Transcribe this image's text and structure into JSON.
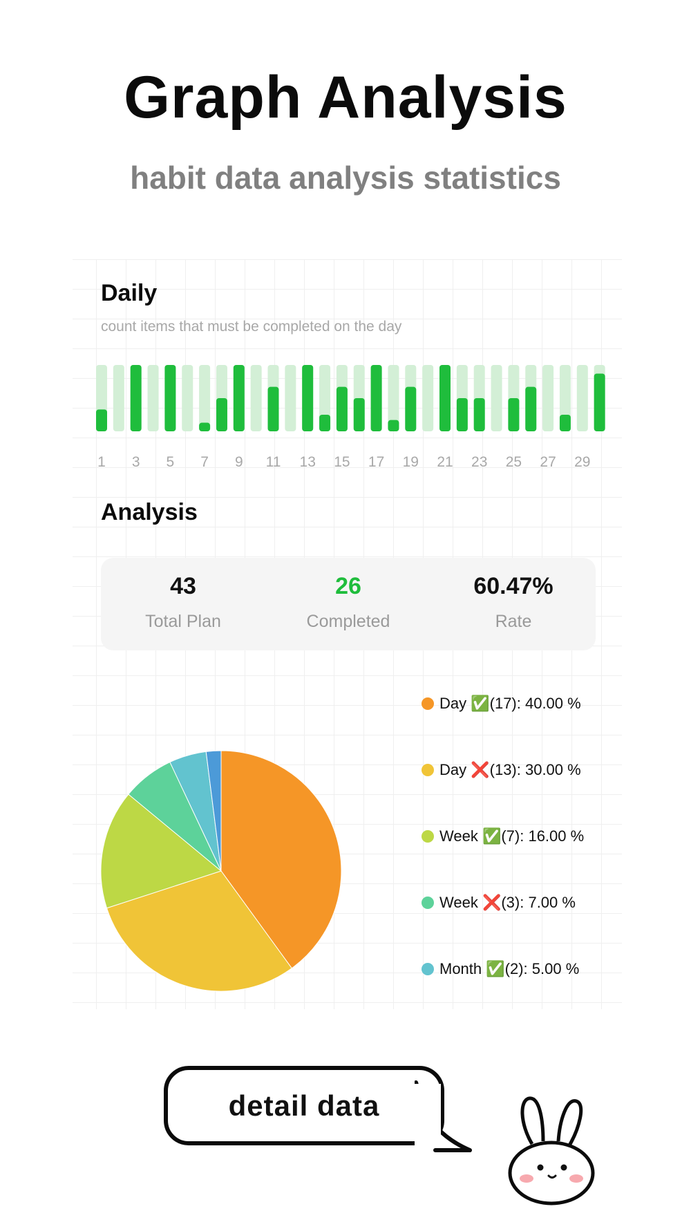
{
  "header": {
    "title": "Graph Analysis",
    "subtitle": "habit data analysis statistics"
  },
  "daily": {
    "title": "Daily",
    "description": "count items that must be completed on the day"
  },
  "chart_data": [
    {
      "type": "bar",
      "categories": [
        "1",
        "2",
        "3",
        "4",
        "5",
        "6",
        "7",
        "8",
        "9",
        "10",
        "11",
        "12",
        "13",
        "14",
        "15",
        "16",
        "17",
        "18",
        "19",
        "20",
        "21",
        "22",
        "23",
        "24",
        "25",
        "26",
        "27",
        "28",
        "29",
        "30"
      ],
      "x_tick_labels": [
        "1",
        "3",
        "5",
        "7",
        "9",
        "11",
        "13",
        "15",
        "17",
        "19",
        "21",
        "23",
        "25",
        "27",
        "29"
      ],
      "values": [
        0.33,
        0,
        1,
        0,
        1,
        0,
        0.13,
        0.5,
        1,
        0,
        0.67,
        0,
        1,
        0.25,
        0.67,
        0.5,
        1,
        0.17,
        0.67,
        0,
        1,
        0.5,
        0.5,
        0,
        0.5,
        0.67,
        0,
        0.25,
        0,
        0.87
      ],
      "ylim": [
        0,
        1
      ],
      "colors": {
        "fill": "#1fbd3c",
        "track": "#d3efd6"
      }
    },
    {
      "type": "pie",
      "labels": [
        "Day ✅(17): 40.00 %",
        "Day ❌(13): 30.00 %",
        "Week ✅(7): 16.00 %",
        "Week ❌(3): 7.00 %",
        "Month ✅(2): 5.00 %",
        ""
      ],
      "values": [
        40,
        30,
        16,
        7,
        5,
        2
      ],
      "colors": [
        "#f59627",
        "#f0c437",
        "#bdd845",
        "#5dd29a",
        "#62c3cf",
        "#4c9ad8"
      ],
      "legend": "right"
    }
  ],
  "analysis": {
    "title": "Analysis",
    "stats": [
      {
        "value": "43",
        "label": "Total Plan",
        "color": "#111111"
      },
      {
        "value": "26",
        "label": "Completed",
        "color": "#1fbd3c"
      },
      {
        "value": "60.47%",
        "label": "Rate",
        "color": "#111111"
      }
    ]
  },
  "footer": {
    "button_label": "detail data",
    "mascot_icon": "bunny-icon"
  }
}
